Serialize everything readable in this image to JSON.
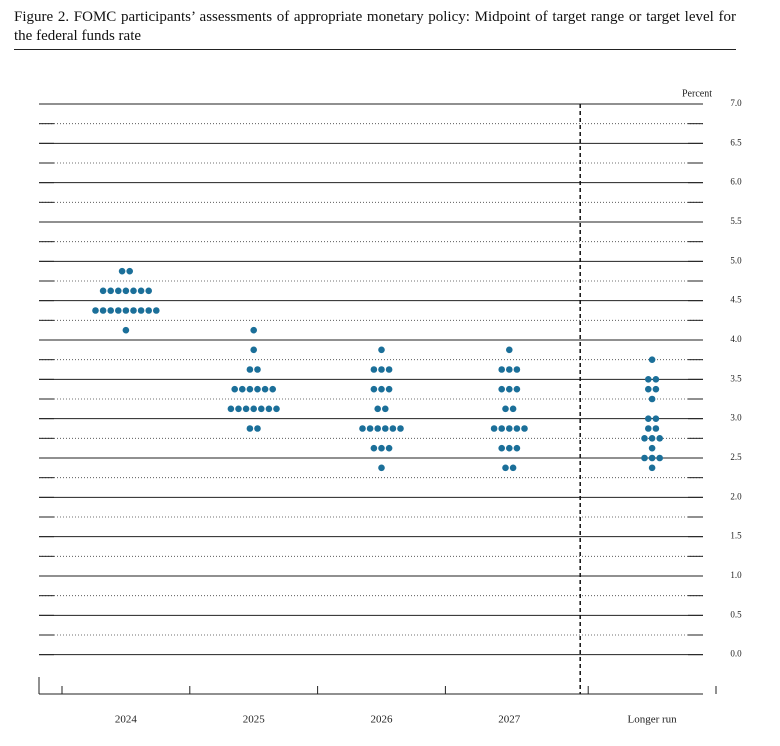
{
  "chart_data": {
    "type": "dot",
    "title": "Figure 2.  FOMC participants’ assessments of appropriate monetary policy: Midpoint of target range or target level for the federal funds rate",
    "y_label": "Percent",
    "categories": [
      "2024",
      "2025",
      "2026",
      "2027",
      "Longer run"
    ],
    "color": "#1b6f99",
    "dots": [
      [
        {
          "rate": 4.875,
          "count": 2
        },
        {
          "rate": 4.625,
          "count": 7
        },
        {
          "rate": 4.375,
          "count": 9
        },
        {
          "rate": 4.125,
          "count": 1
        }
      ],
      [
        {
          "rate": 4.125,
          "count": 1
        },
        {
          "rate": 3.875,
          "count": 1
        },
        {
          "rate": 3.625,
          "count": 2
        },
        {
          "rate": 3.375,
          "count": 6
        },
        {
          "rate": 3.125,
          "count": 7
        },
        {
          "rate": 2.875,
          "count": 2
        }
      ],
      [
        {
          "rate": 3.875,
          "count": 1
        },
        {
          "rate": 3.625,
          "count": 3
        },
        {
          "rate": 3.375,
          "count": 3
        },
        {
          "rate": 3.125,
          "count": 2
        },
        {
          "rate": 2.875,
          "count": 6
        },
        {
          "rate": 2.625,
          "count": 3
        },
        {
          "rate": 2.375,
          "count": 1
        }
      ],
      [
        {
          "rate": 3.875,
          "count": 1
        },
        {
          "rate": 3.625,
          "count": 3
        },
        {
          "rate": 3.375,
          "count": 3
        },
        {
          "rate": 3.125,
          "count": 2
        },
        {
          "rate": 2.875,
          "count": 5
        },
        {
          "rate": 2.625,
          "count": 3
        },
        {
          "rate": 2.375,
          "count": 2
        }
      ],
      [
        {
          "rate": 3.75,
          "count": 1
        },
        {
          "rate": 3.5,
          "count": 2
        },
        {
          "rate": 3.375,
          "count": 2
        },
        {
          "rate": 3.25,
          "count": 1
        },
        {
          "rate": 3.0,
          "count": 2
        },
        {
          "rate": 2.875,
          "count": 2
        },
        {
          "rate": 2.75,
          "count": 3
        },
        {
          "rate": 2.625,
          "count": 1
        },
        {
          "rate": 2.5,
          "count": 3
        },
        {
          "rate": 2.375,
          "count": 1
        }
      ]
    ],
    "ylim": [
      -0.5,
      7
    ],
    "yticks": [
      {
        "value": 0,
        "label": "0.0"
      },
      {
        "value": 0.5,
        "label": "0.5"
      },
      {
        "value": 1,
        "label": "1.0"
      },
      {
        "value": 1.5,
        "label": "1.5"
      },
      {
        "value": 2,
        "label": "2.0"
      },
      {
        "value": 2.5,
        "label": "2.5"
      },
      {
        "value": 3,
        "label": "3.0"
      },
      {
        "value": 3.5,
        "label": "3.5"
      },
      {
        "value": 4,
        "label": "4.0"
      },
      {
        "value": 4.5,
        "label": "4.5"
      },
      {
        "value": 5,
        "label": "5.0"
      },
      {
        "value": 5.5,
        "label": "5.5"
      },
      {
        "value": 6,
        "label": "6.0"
      },
      {
        "value": 6.5,
        "label": "6.5"
      },
      {
        "value": 7,
        "label": "7.0"
      }
    ],
    "grid": true
  }
}
